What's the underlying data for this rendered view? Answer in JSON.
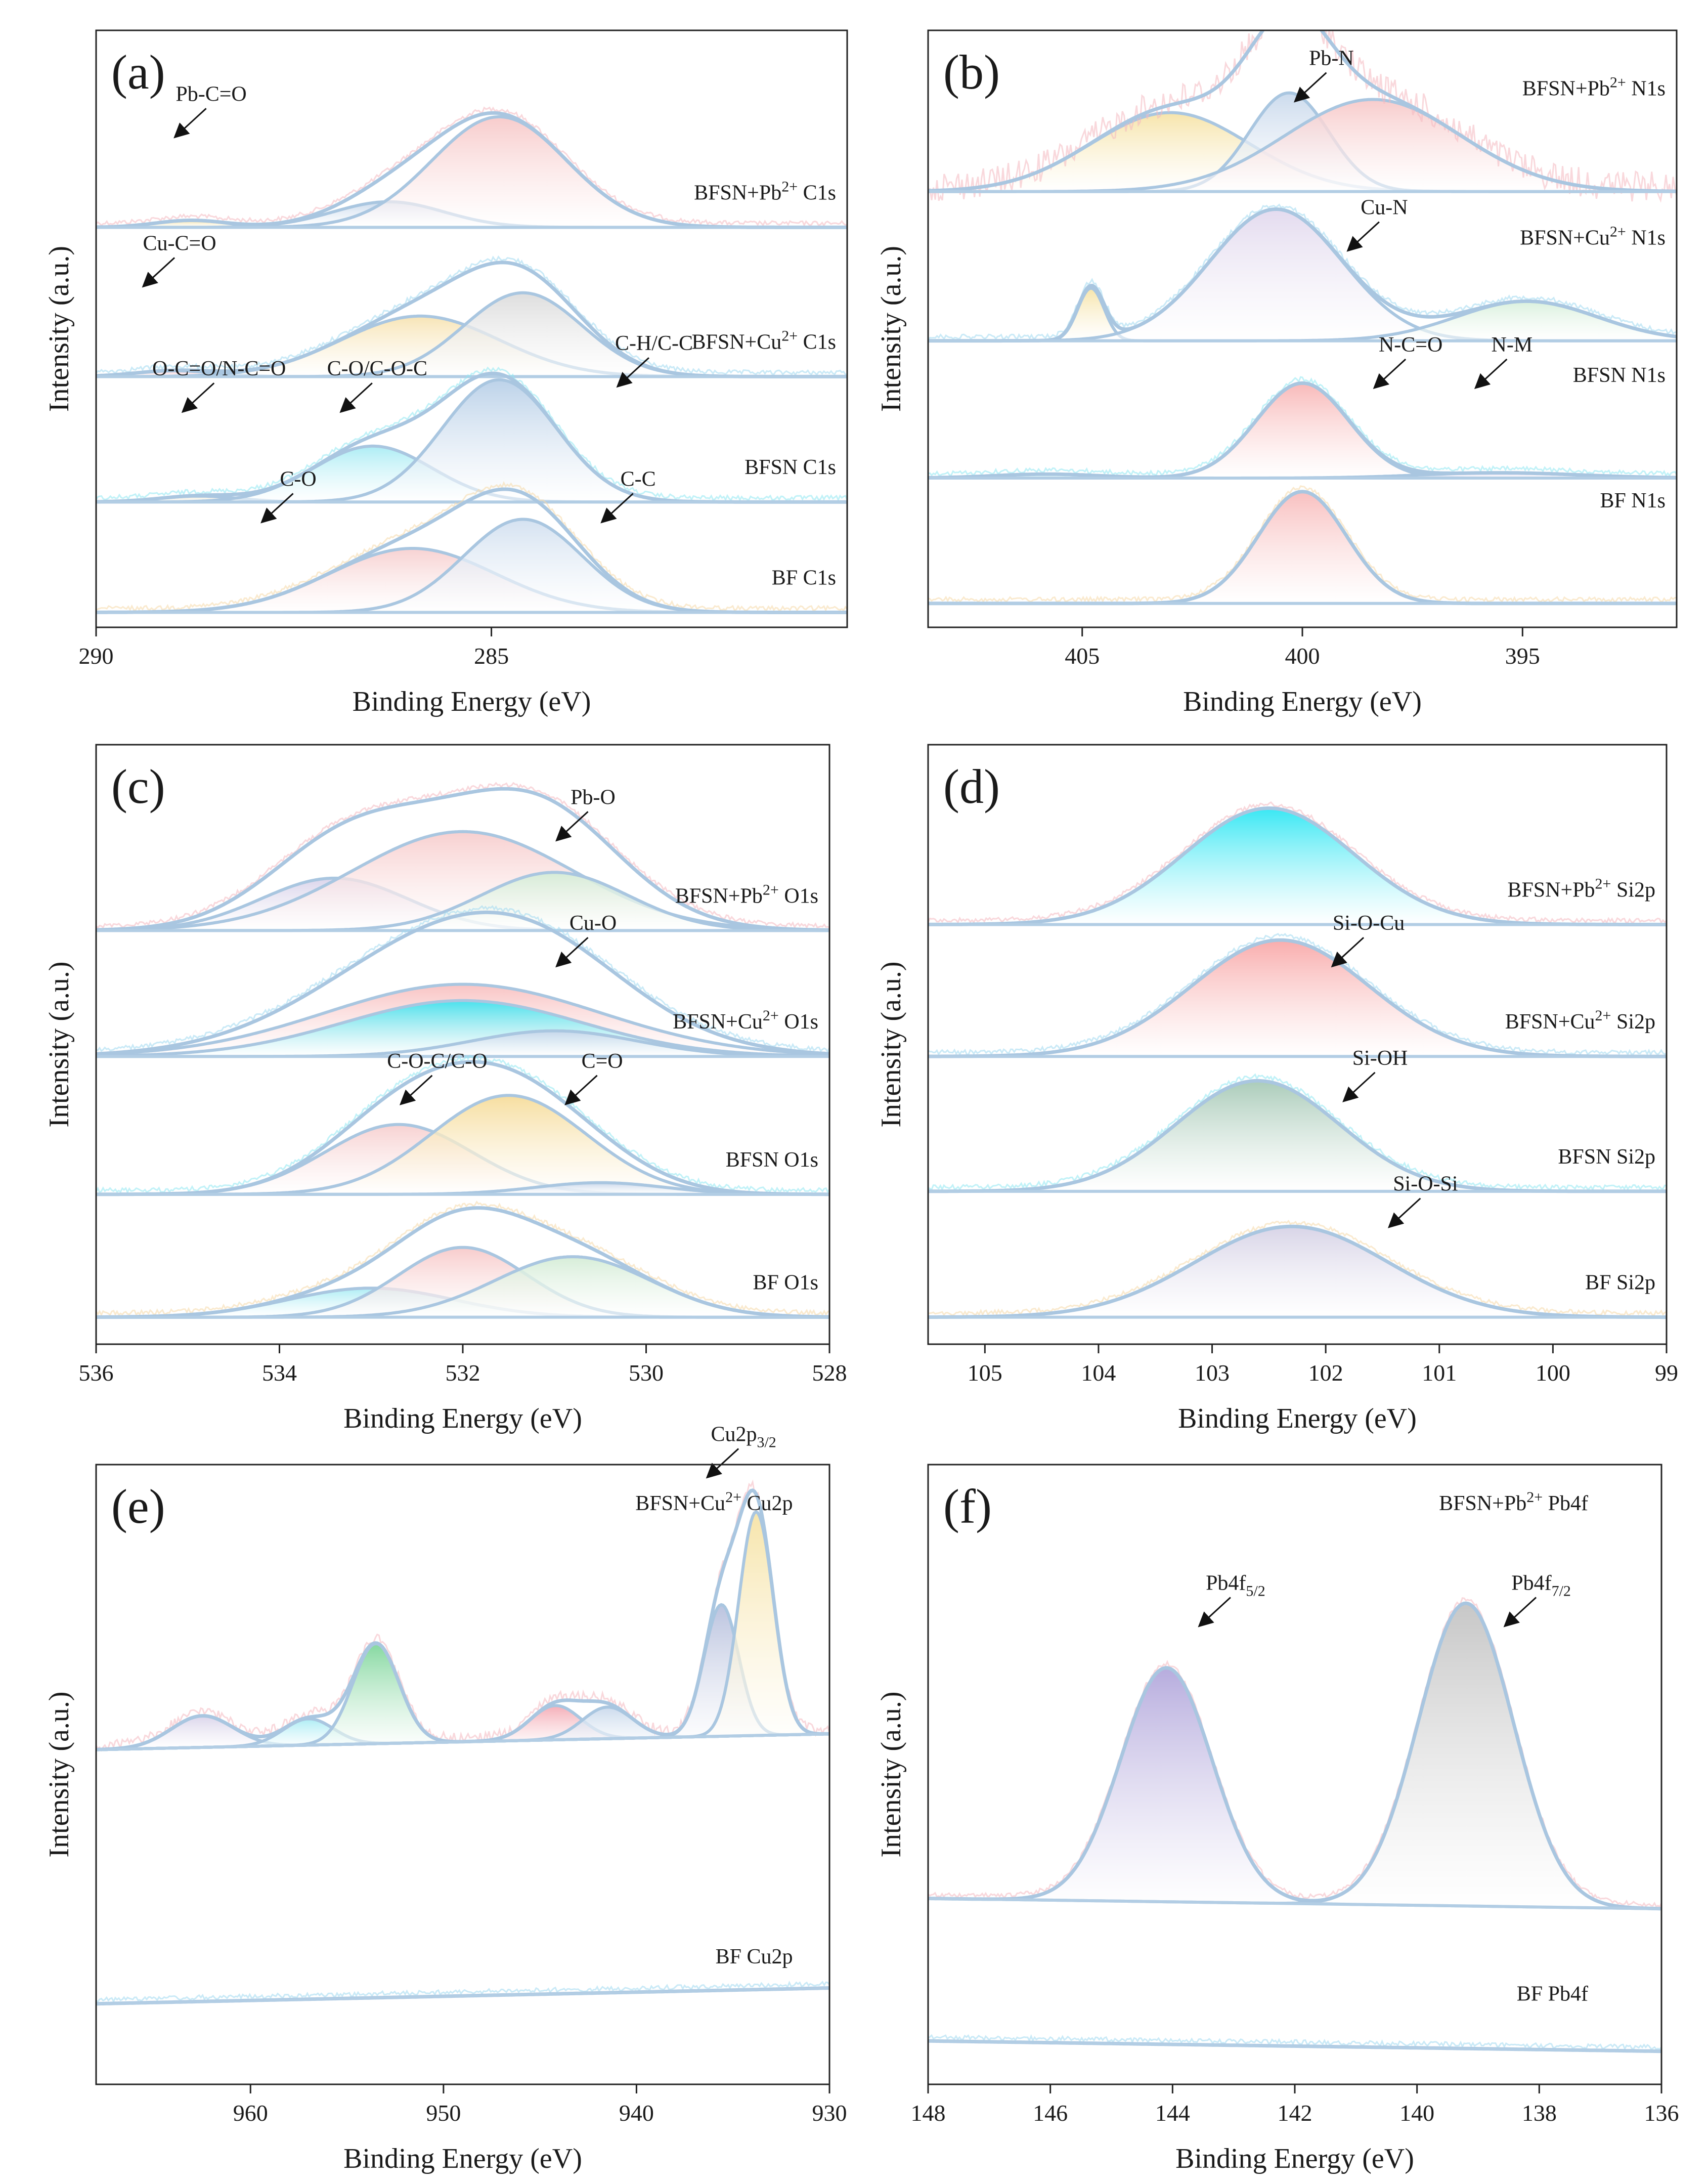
{
  "figure": {
    "xlabel": "Binding Energy (eV)",
    "ylabel": "Intensity (a.u.)"
  },
  "chart_data": [
    {
      "id": "a",
      "letter": "(a)",
      "type": "area",
      "xlim": [
        290,
        280.5
      ],
      "xticks": [
        290,
        285
      ],
      "annotations": [
        {
          "text": "Pb-C=O",
          "x": 288.8,
          "row": 0
        },
        {
          "text": "Cu-C=O",
          "x": 289.2,
          "row": 1
        },
        {
          "text": "C-O/C-O-C",
          "x": 286.7,
          "row": 2
        },
        {
          "text": "C-H/C-C",
          "x": 283.2,
          "row": 2
        },
        {
          "text": "O-C=O/N-C=O",
          "x": 288.7,
          "row": 2
        },
        {
          "text": "C-O",
          "x": 287.7,
          "row": 3
        },
        {
          "text": "C-C",
          "x": 283.4,
          "row": 3
        }
      ],
      "series": [
        {
          "name": "BFSN+Pb²⁺ C1s",
          "peaks": [
            {
              "center": 288.8,
              "height": 0.06,
              "width": 0.45,
              "color": "#f6e3a6"
            },
            {
              "center": 286.3,
              "height": 0.22,
              "width": 0.7,
              "color": "#c9d9ec"
            },
            {
              "center": 284.9,
              "height": 0.95,
              "width": 0.85,
              "color": "#f7c9c9"
            }
          ]
        },
        {
          "name": "BFSN+Cu²⁺ C1s",
          "peaks": [
            {
              "center": 289.0,
              "height": 0.05,
              "width": 0.5,
              "color": "#f4c6cf"
            },
            {
              "center": 285.9,
              "height": 0.52,
              "width": 1.0,
              "color": "#f7e3b2"
            },
            {
              "center": 284.6,
              "height": 0.72,
              "width": 0.75,
              "color": "#dcdcdc"
            }
          ]
        },
        {
          "name": "BFSN C1s",
          "peaks": [
            {
              "center": 288.7,
              "height": 0.05,
              "width": 0.5,
              "color": "#f2ead5"
            },
            {
              "center": 286.5,
              "height": 0.48,
              "width": 0.75,
              "color": "#a9ecf4"
            },
            {
              "center": 284.9,
              "height": 1.05,
              "width": 0.72,
              "color": "#b9d0e8"
            }
          ]
        },
        {
          "name": "BF C1s",
          "peaks": [
            {
              "center": 286.0,
              "height": 0.55,
              "width": 1.05,
              "color": "#f7cfcf"
            },
            {
              "center": 284.6,
              "height": 0.8,
              "width": 0.75,
              "color": "#d2e0f0"
            }
          ]
        }
      ]
    },
    {
      "id": "b",
      "letter": "(b)",
      "type": "area",
      "xlim": [
        408.5,
        391.5
      ],
      "xticks": [
        405,
        400,
        395
      ],
      "annotations": [
        {
          "text": "Pb-N",
          "x": 399.8,
          "row": 0
        },
        {
          "text": "Cu-N",
          "x": 398.6,
          "row": 1
        },
        {
          "text": "N-C=O",
          "x": 398.0,
          "row": 2
        },
        {
          "text": "N-M",
          "x": 395.7,
          "row": 2
        }
      ],
      "series": [
        {
          "name": "BFSN+Pb²⁺ N1s",
          "peaks": [
            {
              "center": 403.0,
              "height": 0.6,
              "width": 1.8,
              "color": "#f6e3a6"
            },
            {
              "center": 400.3,
              "height": 0.75,
              "width": 0.9,
              "color": "#c9d9ec"
            },
            {
              "center": 398.4,
              "height": 0.7,
              "width": 2.0,
              "color": "#f7c9c9"
            }
          ]
        },
        {
          "name": "BFSN+Cu²⁺ N1s",
          "peaks": [
            {
              "center": 404.8,
              "height": 0.4,
              "width": 0.3,
              "color": "#f6e3a6"
            },
            {
              "center": 400.6,
              "height": 1.0,
              "width": 1.5,
              "color": "#e2d9ee"
            },
            {
              "center": 394.9,
              "height": 0.3,
              "width": 1.6,
              "color": "#d8f0dc"
            }
          ]
        },
        {
          "name": "BFSN N1s",
          "peaks": [
            {
              "center": 405.8,
              "height": 0.03,
              "width": 1.2,
              "color": "#a9ecf4"
            },
            {
              "center": 400.0,
              "height": 0.72,
              "width": 1.05,
              "color": "#f8b6b6"
            },
            {
              "center": 395.5,
              "height": 0.04,
              "width": 1.8,
              "color": "#e2d9ee"
            }
          ]
        },
        {
          "name": "BF N1s",
          "peaks": [
            {
              "center": 400.0,
              "height": 0.85,
              "width": 1.0,
              "color": "#f8bcbc"
            }
          ]
        }
      ]
    },
    {
      "id": "c",
      "letter": "(c)",
      "type": "area",
      "xlim": [
        536,
        528
      ],
      "xticks": [
        536,
        534,
        532,
        530,
        528
      ],
      "annotations": [
        {
          "text": "Pb-O",
          "x": 530.8,
          "row": 0
        },
        {
          "text": "Cu-O",
          "x": 530.8,
          "row": 1
        },
        {
          "text": "C-O-C/C-O",
          "x": 532.5,
          "row": 2
        },
        {
          "text": "C=O",
          "x": 530.7,
          "row": 2
        }
      ],
      "series": [
        {
          "name": "BFSN+Pb²⁺ O1s",
          "peaks": [
            {
              "center": 533.4,
              "height": 0.45,
              "width": 0.8,
              "color": "#d9d3ea"
            },
            {
              "center": 532.0,
              "height": 0.85,
              "width": 1.2,
              "color": "#f7cdcd"
            },
            {
              "center": 531.0,
              "height": 0.5,
              "width": 0.8,
              "color": "#d4ecd6"
            }
          ]
        },
        {
          "name": "BFSN+Cu²⁺ O1s",
          "peaks": [
            {
              "center": 532.0,
              "height": 0.62,
              "width": 1.5,
              "color": "#f8c0c0"
            },
            {
              "center": 532.0,
              "height": 0.48,
              "width": 1.3,
              "color": "#3fe2ee"
            },
            {
              "center": 531.0,
              "height": 0.22,
              "width": 0.9,
              "color": "#c7d6ea"
            }
          ]
        },
        {
          "name": "BFSN O1s",
          "peaks": [
            {
              "center": 532.7,
              "height": 0.6,
              "width": 0.8,
              "color": "#f7cfcf"
            },
            {
              "center": 531.5,
              "height": 0.85,
              "width": 0.85,
              "color": "#f6dc9a"
            },
            {
              "center": 530.5,
              "height": 0.1,
              "width": 0.7,
              "color": "#c7d6ea"
            }
          ]
        },
        {
          "name": "BF O1s",
          "peaks": [
            {
              "center": 533.0,
              "height": 0.25,
              "width": 0.9,
              "color": "#a9ecf4"
            },
            {
              "center": 532.0,
              "height": 0.6,
              "width": 0.7,
              "color": "#f7c9c9"
            },
            {
              "center": 530.8,
              "height": 0.52,
              "width": 0.85,
              "color": "#d4ecd6"
            }
          ]
        }
      ]
    },
    {
      "id": "d",
      "letter": "(d)",
      "type": "area",
      "xlim": [
        105.5,
        99
      ],
      "xticks": [
        105,
        104,
        103,
        102,
        101,
        100,
        99
      ],
      "annotations": [
        {
          "text": "Si-O-Cu",
          "x": 101.8,
          "row": 1
        },
        {
          "text": "Si-OH",
          "x": 101.7,
          "row": 2
        },
        {
          "text": "Si-O-Si",
          "x": 101.3,
          "row": 3
        }
      ],
      "series": [
        {
          "name": "BFSN+Pb²⁺ Si2p",
          "peaks": [
            {
              "center": 102.5,
              "height": 1.0,
              "width": 0.75,
              "color": "#2ee6f3"
            }
          ]
        },
        {
          "name": "BFSN+Cu²⁺ Si2p",
          "peaks": [
            {
              "center": 102.4,
              "height": 1.0,
              "width": 0.78,
              "color": "#f8a8a8"
            }
          ]
        },
        {
          "name": "BFSN Si2p",
          "peaks": [
            {
              "center": 102.6,
              "height": 0.95,
              "width": 0.72,
              "color": "#a6c9b6"
            }
          ]
        },
        {
          "name": "BF Si2p",
          "peaks": [
            {
              "center": 102.3,
              "height": 0.78,
              "width": 0.85,
              "color": "#d6d2e6"
            }
          ]
        }
      ]
    },
    {
      "id": "e",
      "letter": "(e)",
      "type": "area",
      "xlim": [
        968,
        930
      ],
      "xticks": [
        960,
        950,
        940,
        930
      ],
      "annotations": [
        {
          "text": "Cu2p3/2",
          "x": 935.5,
          "row": 0
        }
      ],
      "series": [
        {
          "name": "BFSN+Cu²⁺ Cu2p",
          "peaks": [
            {
              "center": 962.5,
              "height": 0.12,
              "width": 1.6,
              "color": "#d9d3ea"
            },
            {
              "center": 957.0,
              "height": 0.1,
              "width": 1.3,
              "color": "#a9ecf4"
            },
            {
              "center": 953.5,
              "height": 0.38,
              "width": 1.2,
              "color": "#7fd69b"
            },
            {
              "center": 944.2,
              "height": 0.13,
              "width": 1.3,
              "color": "#f4a9b3"
            },
            {
              "center": 941.5,
              "height": 0.12,
              "width": 1.3,
              "color": "#c9d9ec"
            },
            {
              "center": 935.6,
              "height": 0.5,
              "width": 0.9,
              "color": "#b7c0dd"
            },
            {
              "center": 933.8,
              "height": 0.85,
              "width": 0.9,
              "color": "#f6e3a6"
            }
          ]
        },
        {
          "name": "BF Cu2p",
          "peaks": []
        }
      ]
    },
    {
      "id": "f",
      "letter": "(f)",
      "type": "area",
      "xlim": [
        148,
        136
      ],
      "xticks": [
        148,
        146,
        144,
        142,
        140,
        138,
        136
      ],
      "annotations": [
        {
          "text": "Pb4f5/2",
          "x": 143.3,
          "row": 0
        },
        {
          "text": "Pb4f7/2",
          "x": 138.3,
          "row": 0
        }
      ],
      "series": [
        {
          "name": "BFSN+Pb²⁺ Pb4f",
          "peaks": [
            {
              "center": 144.1,
              "height": 0.68,
              "width": 0.75,
              "color": "#b3a8dc"
            },
            {
              "center": 139.2,
              "height": 0.88,
              "width": 0.78,
              "color": "#c4c4c4"
            }
          ]
        },
        {
          "name": "BF Pb4f",
          "peaks": []
        }
      ]
    }
  ]
}
